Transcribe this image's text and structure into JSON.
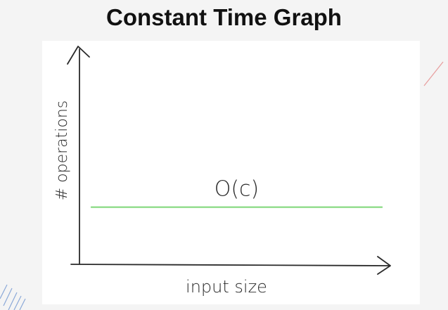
{
  "title": "Constant Time Graph",
  "chart_data": {
    "type": "line",
    "title": "Constant Time Graph",
    "xlabel": "input size",
    "ylabel": "# operations",
    "grid": false,
    "legend": "none",
    "series": [
      {
        "name": "O(c)",
        "x": [
          0,
          1
        ],
        "y": [
          0.27,
          0.27
        ],
        "color": "#8fdc8a"
      }
    ],
    "xlim": [
      0,
      1
    ],
    "ylim": [
      0,
      1
    ]
  }
}
